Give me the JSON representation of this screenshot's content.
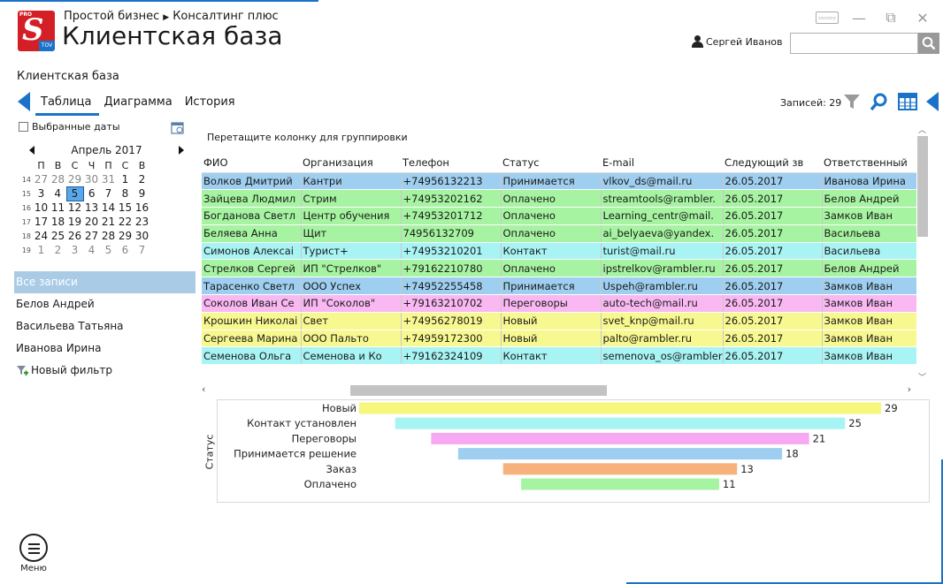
{
  "header": {
    "logo": {
      "pro": "PRO",
      "s": "S",
      "tov": "TOV"
    },
    "breadcrumb": [
      "Простой бизнес",
      "Консалтинг плюс"
    ],
    "title": "Клиентская база",
    "user_name": "Сергей Иванов",
    "search_placeholder": ""
  },
  "section_title": "Клиентская база",
  "tabs": [
    {
      "label": "Таблица",
      "active": true
    },
    {
      "label": "Диаграмма",
      "active": false
    },
    {
      "label": "История",
      "active": false
    }
  ],
  "records_label": "Записей: 29",
  "sidebar": {
    "selected_dates_label": "Выбранные даты",
    "calendar": {
      "month": "Апрель 2017",
      "weekdays": [
        "П",
        "В",
        "С",
        "Ч",
        "П",
        "С",
        "В"
      ],
      "weeks": [
        {
          "num": "14",
          "days": [
            "27",
            "28",
            "29",
            "30",
            "31",
            "1",
            "2"
          ]
        },
        {
          "num": "15",
          "days": [
            "3",
            "4",
            "5",
            "6",
            "7",
            "8",
            "9"
          ]
        },
        {
          "num": "16",
          "days": [
            "10",
            "11",
            "12",
            "13",
            "14",
            "15",
            "16"
          ]
        },
        {
          "num": "17",
          "days": [
            "17",
            "18",
            "19",
            "20",
            "21",
            "22",
            "23"
          ]
        },
        {
          "num": "18",
          "days": [
            "24",
            "25",
            "26",
            "27",
            "28",
            "29",
            "30"
          ]
        },
        {
          "num": "19",
          "days": [
            "1",
            "2",
            "3",
            "4",
            "5",
            "6",
            "7"
          ]
        }
      ],
      "today": "5"
    },
    "filters": [
      "Все записи",
      "Белов Андрей",
      "Васильева Татьяна",
      "Иванова Ирина"
    ],
    "new_filter_label": "Новый фильтр"
  },
  "grid": {
    "group_hint": "Перетащите колонку для группировки",
    "columns": [
      "ФИО",
      "Организация",
      "Телефон",
      "Статус",
      "E-mail",
      "Следующий зв",
      "Ответственный"
    ],
    "rows": [
      {
        "fio": "Волков Дмитрий",
        "org": "Кантри",
        "phone": "+74956132213",
        "status": "Принимается",
        "email": "vlkov_ds@mail.ru",
        "next": "26.05.2017",
        "resp": "Иванова Ирина",
        "color": "#9fcff0"
      },
      {
        "fio": "Зайцева Людмил",
        "org": "Стрим",
        "phone": "+74953202162",
        "status": "Оплачено",
        "email": "streamtools@rambler.",
        "next": "26.05.2017",
        "resp": "Белов Андрей",
        "color": "#a6f4a1"
      },
      {
        "fio": "Богданова Светл",
        "org": "Центр обучения",
        "phone": "+74953201712",
        "status": "Оплачено",
        "email": "Learning_centr@mail.",
        "next": "26.05.2017",
        "resp": "Замков Иван",
        "color": "#a6f4a1"
      },
      {
        "fio": "Беляева Анна",
        "org": "Щит",
        "phone": "74956132709",
        "status": "Оплачено",
        "email": "ai_belyaeva@yandex.",
        "next": "26.05.2017",
        "resp": "Васильева",
        "color": "#a6f4a1"
      },
      {
        "fio": "Симонов Алексаі",
        "org": "Турист+",
        "phone": "+74953210201",
        "status": "Контакт",
        "email": "turist@mail.ru",
        "next": "26.05.2017",
        "resp": "Васильева",
        "color": "#a8f4f4"
      },
      {
        "fio": "Стрелков Сергей",
        "org": "ИП \"Стрелков\"",
        "phone": "+79162210780",
        "status": "Оплачено",
        "email": "ipstrelkov@rambler.ru",
        "next": "26.05.2017",
        "resp": "Белов Андрей",
        "color": "#a6f4a1"
      },
      {
        "fio": "Тарасенко Светл",
        "org": "ООО Успех",
        "phone": "+74952255458",
        "status": "Принимается",
        "email": "Uspeh@rambler.ru",
        "next": "26.05.2017",
        "resp": "Замков Иван",
        "color": "#9fcff0"
      },
      {
        "fio": "Соколов Иван Се",
        "org": "ИП \"Соколов\"",
        "phone": "+79163210702",
        "status": "Переговоры",
        "email": "auto-tech@mail.ru",
        "next": "26.05.2017",
        "resp": "Замков Иван",
        "color": "#f9b8f2"
      },
      {
        "fio": "Крошкин Николаі",
        "org": "Свет",
        "phone": "+74956278019",
        "status": "Новый",
        "email": "svet_knp@mail.ru",
        "next": "26.05.2017",
        "resp": "Замков Иван",
        "color": "#f8f890"
      },
      {
        "fio": "Сергеева Марина",
        "org": "ООО Пальто",
        "phone": "+74959172300",
        "status": "Новый",
        "email": "palto@rambler.ru",
        "next": "26.05.2017",
        "resp": "Замков Иван",
        "color": "#f8f890"
      },
      {
        "fio": "Семенова Ольга",
        "org": "Семенова и Ко",
        "phone": "+79162324109",
        "status": "Контакт",
        "email": "semenova_os@rambler",
        "next": "26.05.2017",
        "resp": "Замков Иван",
        "color": "#a8f4f4"
      }
    ]
  },
  "chart_data": {
    "type": "bar",
    "orientation": "horizontal",
    "title": "",
    "ylabel": "Статус",
    "xlabel": "",
    "categories": [
      "Новый",
      "Контакт установлен",
      "Переговоры",
      "Принимается решение",
      "Заказ",
      "Оплачено"
    ],
    "values": [
      29,
      25,
      21,
      18,
      13,
      11
    ],
    "colors": [
      "#f7f77e",
      "#a8f4f4",
      "#f7a8f2",
      "#9fcff0",
      "#f6b27a",
      "#a6f4a1"
    ],
    "xlim": [
      0,
      30
    ]
  },
  "footer": {
    "menu_label": "Меню"
  },
  "accent": "#1a73c8"
}
